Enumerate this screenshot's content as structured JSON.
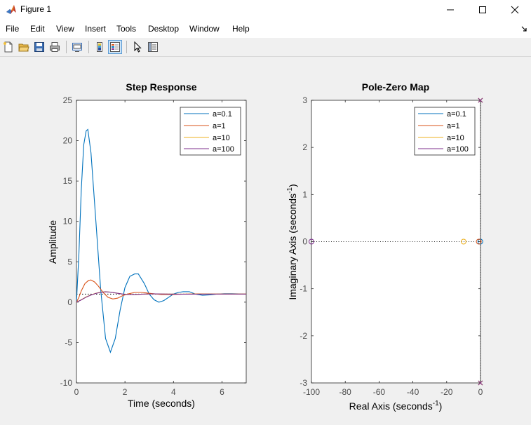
{
  "window": {
    "title": "Figure 1",
    "minimize_icon": "minimize-icon",
    "maximize_icon": "maximize-icon",
    "close_icon": "close-icon"
  },
  "menu": [
    "File",
    "Edit",
    "View",
    "Insert",
    "Tools",
    "Desktop",
    "Window",
    "Help"
  ],
  "toolbar": {
    "buttons": [
      "new-figure-icon",
      "open-file-icon",
      "save-icon",
      "print-icon",
      "link-plot-icon",
      "colorbar-icon",
      "legend-icon",
      "edit-plot-icon",
      "property-inspector-icon"
    ]
  },
  "colors": {
    "series_1": "#0072BD",
    "series_2": "#D95319",
    "series_3": "#EDB120",
    "series_4": "#7E2F8E",
    "axis": "#4d4d4d",
    "background": "#f0f0f0"
  },
  "chart_data": [
    {
      "type": "line",
      "title": "Step Response",
      "xlabel": "Time (seconds)",
      "ylabel": "Amplitude",
      "xlim": [
        0,
        7
      ],
      "ylim": [
        -10,
        25
      ],
      "xticks": [
        0,
        2,
        4,
        6
      ],
      "yticks": [
        -10,
        -5,
        0,
        5,
        10,
        15,
        20,
        25
      ],
      "xtick_labels": [
        "0",
        "2",
        "4",
        "6"
      ],
      "ytick_labels": [
        "-10",
        "-5",
        "0",
        "5",
        "10",
        "15",
        "20",
        "25"
      ],
      "legend": [
        "a=0.1",
        "a=1",
        "a=10",
        "a=100"
      ],
      "legend_position": "top-right",
      "steady_state_reference": 1,
      "series": [
        {
          "name": "a=0.1",
          "x": [
            0,
            0.1,
            0.2,
            0.3,
            0.4,
            0.47,
            0.6,
            0.8,
            1.0,
            1.2,
            1.4,
            1.6,
            1.8,
            2.0,
            2.2,
            2.4,
            2.55,
            2.8,
            3.0,
            3.2,
            3.4,
            3.6,
            3.8,
            4.0,
            4.2,
            4.4,
            4.65,
            4.9,
            5.2,
            5.5,
            5.8,
            6.1,
            6.4,
            7.0
          ],
          "y": [
            0,
            6,
            14,
            19.5,
            21.2,
            21.4,
            18.5,
            10,
            1.5,
            -4.5,
            -6.2,
            -4.5,
            -1,
            1.8,
            3.2,
            3.5,
            3.5,
            2.3,
            1.0,
            0.3,
            0.0,
            0.2,
            0.6,
            1.0,
            1.2,
            1.3,
            1.3,
            1.0,
            0.85,
            0.9,
            1.0,
            1.05,
            1.05,
            1.0
          ]
        },
        {
          "name": "a=1",
          "x": [
            0,
            0.1,
            0.2,
            0.35,
            0.5,
            0.6,
            0.75,
            0.9,
            1.1,
            1.3,
            1.5,
            1.7,
            1.9,
            2.1,
            2.4,
            2.7,
            3.0,
            3.5,
            4.0,
            4.5,
            5.0,
            6.0,
            7.0
          ],
          "y": [
            0,
            0.6,
            1.4,
            2.3,
            2.7,
            2.75,
            2.5,
            2.0,
            1.2,
            0.6,
            0.4,
            0.5,
            0.8,
            1.0,
            1.2,
            1.2,
            1.1,
            0.95,
            0.95,
            1.0,
            1.02,
            1.0,
            1.0
          ]
        },
        {
          "name": "a=10",
          "x": [
            0,
            0.2,
            0.4,
            0.6,
            0.8,
            1.0,
            1.2,
            1.4,
            1.7,
            2.0,
            2.4,
            2.8,
            3.2,
            3.8,
            4.5,
            5.5,
            7.0
          ],
          "y": [
            0,
            0.3,
            0.65,
            0.9,
            1.1,
            1.25,
            1.3,
            1.25,
            1.1,
            0.95,
            0.95,
            1.0,
            1.03,
            1.0,
            0.99,
            1.0,
            1.0
          ]
        },
        {
          "name": "a=100",
          "x": [
            0,
            0.2,
            0.4,
            0.6,
            0.8,
            1.0,
            1.2,
            1.4,
            1.7,
            2.0,
            2.4,
            2.8,
            3.2,
            3.8,
            4.5,
            5.5,
            7.0
          ],
          "y": [
            0,
            0.28,
            0.62,
            0.88,
            1.08,
            1.22,
            1.28,
            1.24,
            1.1,
            0.96,
            0.95,
            1.0,
            1.03,
            1.0,
            0.99,
            1.0,
            1.0
          ]
        }
      ]
    },
    {
      "type": "scatter",
      "title": "Pole-Zero Map",
      "xlabel": "Real Axis (seconds",
      "xlabel_sup": "-1",
      "xlabel_end": ")",
      "ylabel": "Imaginary Axis (seconds",
      "ylabel_sup": "-1",
      "ylabel_end": ")",
      "xlim": [
        -100,
        0
      ],
      "ylim": [
        -3,
        3
      ],
      "xticks": [
        -100,
        -80,
        -60,
        -40,
        -20,
        0
      ],
      "yticks": [
        -3,
        -2,
        -1,
        0,
        1,
        2,
        3
      ],
      "xtick_labels": [
        "-100",
        "-80",
        "-60",
        "-40",
        "-20",
        "0"
      ],
      "ytick_labels": [
        "-3",
        "-2",
        "-1",
        "0",
        "1",
        "2",
        "3"
      ],
      "legend": [
        "a=0.1",
        "a=1",
        "a=10",
        "a=100"
      ],
      "legend_position": "top-right",
      "series": [
        {
          "name": "a=0.1",
          "zeros": [
            {
              "re": -0.1,
              "im": 0
            }
          ],
          "poles": [
            {
              "re": -0.05,
              "im": 3
            },
            {
              "re": -0.05,
              "im": -3
            }
          ]
        },
        {
          "name": "a=1",
          "zeros": [
            {
              "re": -1,
              "im": 0
            }
          ],
          "poles": [
            {
              "re": -0.05,
              "im": 3
            },
            {
              "re": -0.05,
              "im": -3
            }
          ]
        },
        {
          "name": "a=10",
          "zeros": [
            {
              "re": -10,
              "im": 0
            }
          ],
          "poles": [
            {
              "re": -0.05,
              "im": 3
            },
            {
              "re": -0.05,
              "im": -3
            }
          ]
        },
        {
          "name": "a=100",
          "zeros": [
            {
              "re": -100,
              "im": 0
            }
          ],
          "poles": [
            {
              "re": -0.05,
              "im": 3
            },
            {
              "re": -0.05,
              "im": -3
            }
          ]
        }
      ]
    }
  ]
}
